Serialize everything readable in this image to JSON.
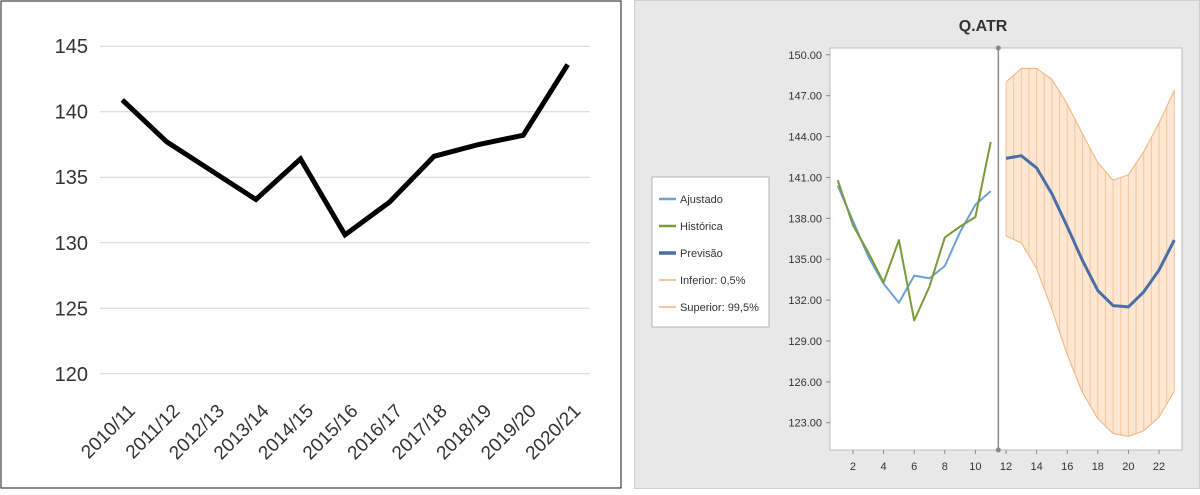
{
  "chart_data": [
    {
      "type": "line",
      "title": "",
      "xlabel": "",
      "ylabel": "",
      "categories": [
        "2010/11",
        "2011/12",
        "2012/13",
        "2013/14",
        "2014/15",
        "2015/16",
        "2016/17",
        "2017/18",
        "2018/19",
        "2019/20",
        "2020/21"
      ],
      "series": [
        {
          "values": [
            140.9,
            137.7,
            135.5,
            133.3,
            136.4,
            130.6,
            133.1,
            136.6,
            137.5,
            138.2,
            143.6
          ]
        }
      ],
      "ylim": [
        118,
        147
      ],
      "yticks": [
        120,
        125,
        130,
        135,
        140,
        145
      ],
      "grid": true,
      "legend": "none",
      "line_color": "#000000"
    },
    {
      "type": "line",
      "title": "Q.ATR",
      "xlabel": "",
      "ylabel": "",
      "ylim": [
        121,
        150.5
      ],
      "yticks": [
        "123.00",
        "126.00",
        "129.00",
        "132.00",
        "135.00",
        "138.00",
        "141.00",
        "144.00",
        "147.00",
        "150.00"
      ],
      "xlim": [
        0.5,
        23.5
      ],
      "xticks": [
        2,
        4,
        6,
        8,
        10,
        12,
        14,
        16,
        18,
        20,
        22
      ],
      "split_x": 11.5,
      "grid": false,
      "legend": "left",
      "series": [
        {
          "name": "Ajustado",
          "color": "#6e9fd6",
          "x": [
            1,
            2,
            3,
            4,
            5,
            6,
            7,
            8,
            9,
            10,
            11
          ],
          "y": [
            140.4,
            137.8,
            135.2,
            133.2,
            131.8,
            133.8,
            133.6,
            134.5,
            137.0,
            139.0,
            140.0
          ]
        },
        {
          "name": "Histórica",
          "color": "#7a9a3c",
          "x": [
            1,
            2,
            3,
            4,
            5,
            6,
            7,
            8,
            9,
            10,
            11
          ],
          "y": [
            140.8,
            137.5,
            135.5,
            133.3,
            136.4,
            130.5,
            133.0,
            136.6,
            137.4,
            138.1,
            143.6
          ]
        },
        {
          "name": "Previsão",
          "color": "#4a6fa5",
          "x": [
            12,
            13,
            14,
            15,
            16,
            17,
            18,
            19,
            20,
            21,
            22,
            23
          ],
          "y": [
            142.4,
            142.6,
            141.7,
            139.8,
            137.4,
            134.9,
            132.7,
            131.6,
            131.5,
            132.6,
            134.2,
            136.4
          ]
        },
        {
          "name": "Inferior: 0,5%",
          "color": "#f2b27a",
          "x": [
            12,
            13,
            14,
            15,
            16,
            17,
            18,
            19,
            20,
            21,
            22,
            23
          ],
          "y": [
            136.7,
            136.2,
            134.3,
            131.3,
            128.0,
            125.2,
            123.3,
            122.2,
            122.0,
            122.4,
            123.4,
            125.3
          ]
        },
        {
          "name": "Superior: 99,5%",
          "color": "#f2b27a",
          "x": [
            12,
            13,
            14,
            15,
            16,
            17,
            18,
            19,
            20,
            21,
            22,
            23
          ],
          "y": [
            148.0,
            149.0,
            149.0,
            148.2,
            146.4,
            144.2,
            142.1,
            140.8,
            141.2,
            142.9,
            145.0,
            147.4
          ]
        }
      ]
    }
  ]
}
